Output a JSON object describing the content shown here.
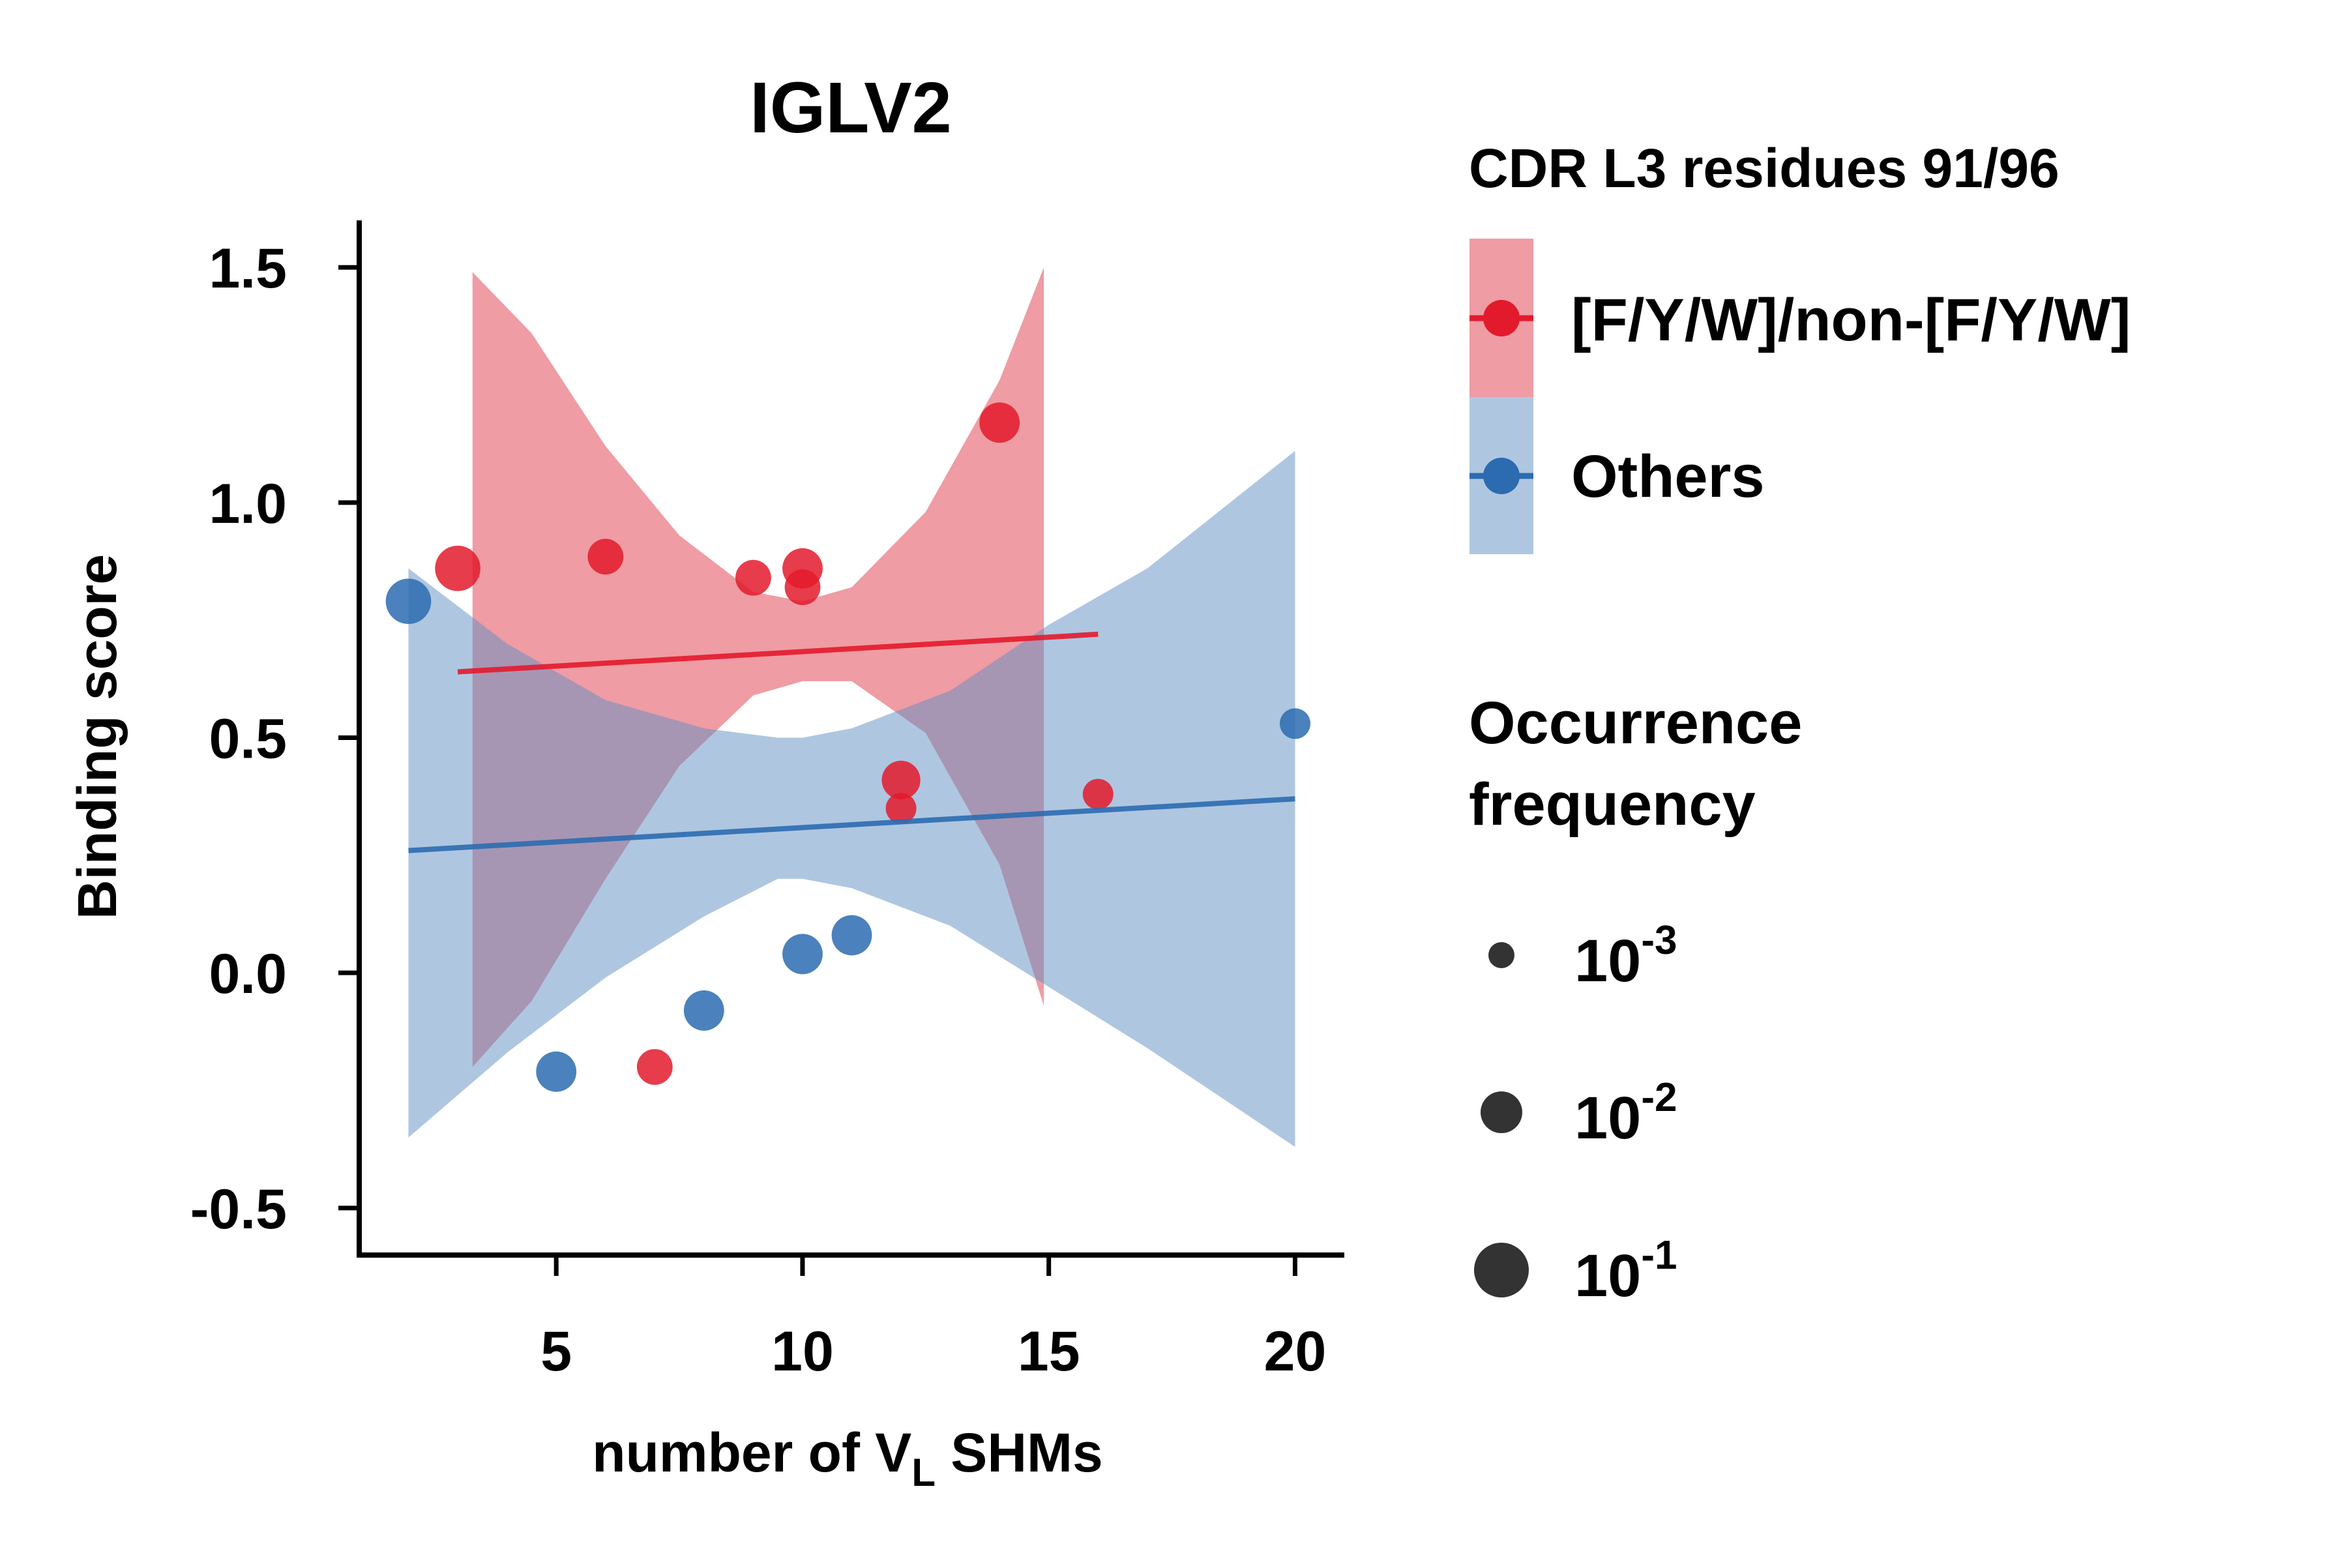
{
  "chart_data": {
    "type": "scatter",
    "title": "IGLV2",
    "xlabel_main": "number of V",
    "xlabel_sub": "L",
    "xlabel_tail": " SHMs",
    "ylabel": "Binding score",
    "xlim": [
      1.0,
      21.0
    ],
    "ylim": [
      -0.6,
      1.6
    ],
    "xticks": [
      5,
      10,
      15,
      20
    ],
    "yticks": [
      -0.5,
      0.0,
      0.5,
      1.0,
      1.5
    ],
    "ytick_labels": [
      "-0.5",
      "0.0",
      "0.5",
      "1.0",
      "1.5"
    ],
    "grid": false,
    "legend_placement": "right",
    "legend_group_title": "CDR L3 residues 91/96",
    "legend_size_title_line1": "Occurrence",
    "legend_size_title_line2": "frequency",
    "size_legend": [
      {
        "base": "10",
        "exp": "-3",
        "frequency": 0.001
      },
      {
        "base": "10",
        "exp": "-2",
        "frequency": 0.01
      },
      {
        "base": "10",
        "exp": "-1",
        "frequency": 0.1
      }
    ],
    "series": [
      {
        "name": "[F/Y/W]/non-[F/Y/W]",
        "color": "#e31a2c",
        "band_color": "#e03a4a",
        "points": [
          {
            "x": 3,
            "y": 0.86,
            "frequency": 0.1
          },
          {
            "x": 6,
            "y": 0.885,
            "frequency": 0.01
          },
          {
            "x": 7,
            "y": -0.2,
            "frequency": 0.01
          },
          {
            "x": 9,
            "y": 0.84,
            "frequency": 0.01
          },
          {
            "x": 10,
            "y": 0.86,
            "frequency": 0.03
          },
          {
            "x": 10,
            "y": 0.82,
            "frequency": 0.01
          },
          {
            "x": 12,
            "y": 0.41,
            "frequency": 0.02
          },
          {
            "x": 12,
            "y": 0.35,
            "frequency": 0.003
          },
          {
            "x": 14,
            "y": 1.17,
            "frequency": 0.03
          },
          {
            "x": 16,
            "y": 0.38,
            "frequency": 0.003
          }
        ],
        "fit": {
          "x": [
            3,
            16
          ],
          "y": [
            0.64,
            0.72
          ]
        },
        "band": {
          "x": [
            3.3,
            4.5,
            6,
            7.5,
            9,
            10,
            11,
            12.5,
            14,
            14.9
          ],
          "upper": [
            1.49,
            1.36,
            1.12,
            0.93,
            0.81,
            0.79,
            0.82,
            0.98,
            1.26,
            1.5
          ],
          "lower": [
            -0.2,
            -0.06,
            0.2,
            0.44,
            0.59,
            0.62,
            0.62,
            0.51,
            0.23,
            -0.07
          ]
        }
      },
      {
        "name": "Others",
        "color": "#2c6bb0",
        "band_color": "#5f8dc4",
        "points": [
          {
            "x": 2,
            "y": 0.79,
            "frequency": 0.1
          },
          {
            "x": 5,
            "y": -0.21,
            "frequency": 0.03
          },
          {
            "x": 8,
            "y": -0.08,
            "frequency": 0.03
          },
          {
            "x": 10,
            "y": 0.04,
            "frequency": 0.03
          },
          {
            "x": 11,
            "y": 0.08,
            "frequency": 0.03
          },
          {
            "x": 20,
            "y": 0.53,
            "frequency": 0.003
          }
        ],
        "fit": {
          "x": [
            2,
            20
          ],
          "y": [
            0.26,
            0.37
          ]
        },
        "band": {
          "x": [
            2,
            4,
            6,
            8,
            9.5,
            10,
            11,
            13,
            15,
            17,
            20
          ],
          "upper": [
            0.86,
            0.7,
            0.58,
            0.52,
            0.5,
            0.5,
            0.52,
            0.6,
            0.74,
            0.86,
            1.11
          ],
          "lower": [
            -0.35,
            -0.17,
            -0.01,
            0.12,
            0.2,
            0.2,
            0.18,
            0.1,
            -0.03,
            -0.16,
            -0.37
          ]
        }
      }
    ]
  }
}
